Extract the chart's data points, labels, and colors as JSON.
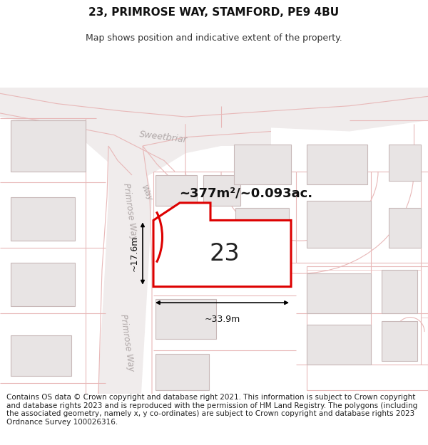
{
  "title": "23, PRIMROSE WAY, STAMFORD, PE9 4BU",
  "subtitle": "Map shows position and indicative extent of the property.",
  "footer_text": "Contains OS data © Crown copyright and database right 2021. This information is subject to Crown copyright and database rights 2023 and is reproduced with the permission of HM Land Registry. The polygons (including the associated geometry, namely x, y co-ordinates) are subject to Crown copyright and database rights 2023 Ordnance Survey 100026316.",
  "area_label": "~377m²/~0.093ac.",
  "number_label": "23",
  "width_label": "~33.9m",
  "height_label": "~17.6m",
  "map_bg": "#f7f4f4",
  "plot_outline_color": "#dd0000",
  "plot_fill_color": "#ffffff",
  "road_outline": "#e8b8b8",
  "bldg_fill": "#e8e4e4",
  "bldg_out": "#c8b8b8",
  "land_line": "#e8b8b8",
  "street_color": "#b0a8a8",
  "title_fontsize": 11,
  "subtitle_fontsize": 9,
  "footer_fontsize": 7.5
}
